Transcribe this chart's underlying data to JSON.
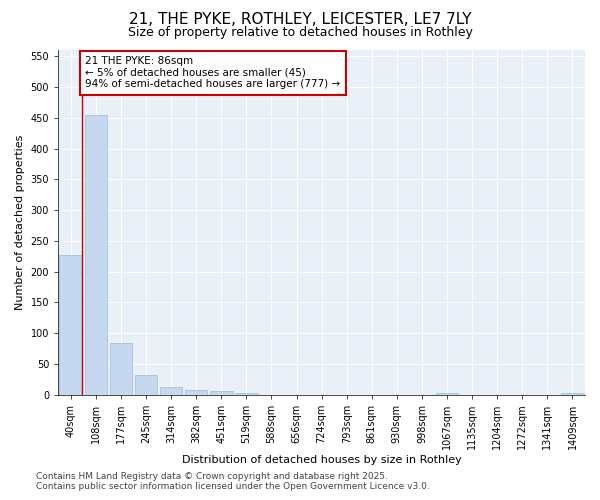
{
  "title": "21, THE PYKE, ROTHLEY, LEICESTER, LE7 7LY",
  "subtitle": "Size of property relative to detached houses in Rothley",
  "xlabel": "Distribution of detached houses by size in Rothley",
  "ylabel": "Number of detached properties",
  "categories": [
    "40sqm",
    "108sqm",
    "177sqm",
    "245sqm",
    "314sqm",
    "382sqm",
    "451sqm",
    "519sqm",
    "588sqm",
    "656sqm",
    "724sqm",
    "793sqm",
    "861sqm",
    "930sqm",
    "998sqm",
    "1067sqm",
    "1135sqm",
    "1204sqm",
    "1272sqm",
    "1341sqm",
    "1409sqm"
  ],
  "values": [
    227,
    454,
    84,
    32,
    12,
    8,
    6,
    3,
    0,
    0,
    0,
    0,
    0,
    0,
    0,
    3,
    0,
    0,
    0,
    0,
    3
  ],
  "bar_color": "#c5d8f0",
  "bar_edge_color": "#a0b8d8",
  "red_line_x": 0.45,
  "annotation_title": "21 THE PYKE: 86sqm",
  "annotation_line1": "← 5% of detached houses are smaller (45)",
  "annotation_line2": "94% of semi-detached houses are larger (777) →",
  "annotation_box_color": "#ffffff",
  "annotation_border_color": "#cc0000",
  "red_line_color": "#cc0000",
  "ylim": [
    0,
    560
  ],
  "yticks": [
    0,
    50,
    100,
    150,
    200,
    250,
    300,
    350,
    400,
    450,
    500,
    550
  ],
  "footer_line1": "Contains HM Land Registry data © Crown copyright and database right 2025.",
  "footer_line2": "Contains public sector information licensed under the Open Government Licence v3.0.",
  "bg_color": "#ffffff",
  "plot_bg_color": "#eaf0f8",
  "grid_color": "#ffffff",
  "title_fontsize": 11,
  "subtitle_fontsize": 9,
  "axis_label_fontsize": 8,
  "tick_fontsize": 7,
  "annotation_fontsize": 7.5,
  "footer_fontsize": 6.5
}
